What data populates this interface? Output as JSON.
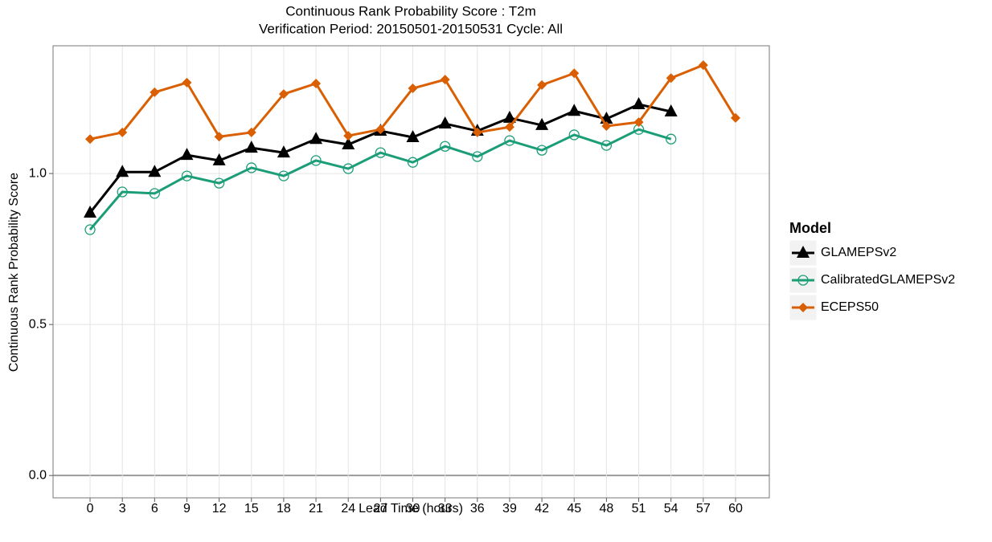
{
  "chart_data": {
    "type": "line",
    "title": "Continuous Rank Probability Score : T2m",
    "subtitle": "Verification Period: 20150501-20150531 Cycle: All",
    "x_label": "Lead Time (hours)",
    "y_label": "Continuous Rank Probability Score",
    "legend_title": "Model",
    "legend_position": "right",
    "grid": true,
    "x": [
      0,
      3,
      6,
      9,
      12,
      15,
      18,
      21,
      24,
      27,
      30,
      33,
      36,
      39,
      42,
      45,
      48,
      51,
      54,
      57,
      60
    ],
    "xlim": [
      -3.44,
      63.14
    ],
    "xticks": [
      0,
      3,
      6,
      9,
      12,
      15,
      18,
      21,
      24,
      27,
      30,
      33,
      36,
      39,
      42,
      45,
      48,
      51,
      54,
      57,
      60
    ],
    "ylim": [
      -0.074,
      1.423
    ],
    "yticks": [
      {
        "value": 0,
        "label": "0.0"
      },
      0.5,
      {
        "value": 1,
        "label": "1.0"
      }
    ],
    "series": [
      {
        "name": "GLAMEPSv2",
        "color": "#000000",
        "marker": "triangle",
        "values": [
          0.87,
          1.005,
          1.005,
          1.061,
          1.043,
          1.085,
          1.069,
          1.114,
          1.096,
          1.141,
          1.12,
          1.165,
          1.141,
          1.184,
          1.16,
          1.207,
          1.181,
          1.229,
          1.205,
          null,
          null
        ]
      },
      {
        "name": "CalibratedGLAMEPSv2",
        "color": "#1b9e77",
        "marker": "circle",
        "values": [
          0.814,
          0.939,
          0.934,
          0.992,
          0.968,
          1.019,
          0.992,
          1.043,
          1.016,
          1.069,
          1.037,
          1.09,
          1.056,
          1.109,
          1.077,
          1.128,
          1.093,
          1.146,
          1.114,
          null,
          null
        ]
      },
      {
        "name": "ECEPS50",
        "color": "#d95f02",
        "marker": "diamond",
        "values": [
          1.114,
          1.136,
          1.269,
          1.301,
          1.122,
          1.136,
          1.263,
          1.298,
          1.125,
          1.146,
          1.282,
          1.311,
          1.136,
          1.154,
          1.293,
          1.332,
          1.157,
          1.17,
          1.316,
          1.359,
          1.184
        ]
      }
    ]
  }
}
